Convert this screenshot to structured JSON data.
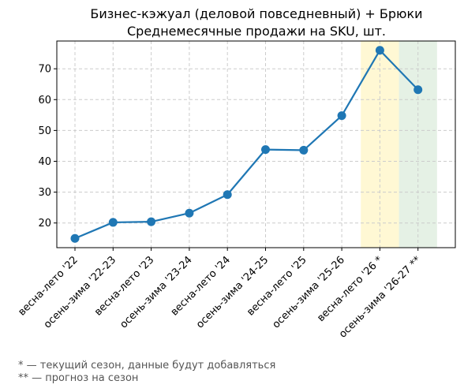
{
  "chart_data": {
    "type": "line",
    "title": "Бизнес-кэжуал (деловой повседневный) + Брюки",
    "subtitle": "Среднемесячные продажи на SKU, шт.",
    "xlabel": "",
    "ylabel": "",
    "categories": [
      "весна-лето '22",
      "осень-зима '22-23",
      "весна-лето '23",
      "осень-зима '23-24",
      "весна-лето '24",
      "осень-зима '24-25",
      "весна-лето '25",
      "осень-зима '25-26",
      "весна-лето '26 *",
      "осень-зима '26-27 **"
    ],
    "series": [
      {
        "values": [
          15.0,
          20.2,
          20.4,
          23.2,
          29.2,
          43.8,
          43.6,
          54.8,
          76.0,
          63.2
        ],
        "color": "#1f77b4"
      }
    ],
    "ylim": [
      12,
      79
    ],
    "yticks": [
      20,
      30,
      40,
      50,
      60,
      70
    ],
    "grid": true,
    "highlights": [
      {
        "category_index": 8,
        "color": "#fff3b0"
      },
      {
        "category_index": 9,
        "color": "#cfe6cf"
      }
    ]
  },
  "footnotes": [
    "* — текущий сезон, данные будут добавляться",
    "** — прогноз на сезон"
  ]
}
